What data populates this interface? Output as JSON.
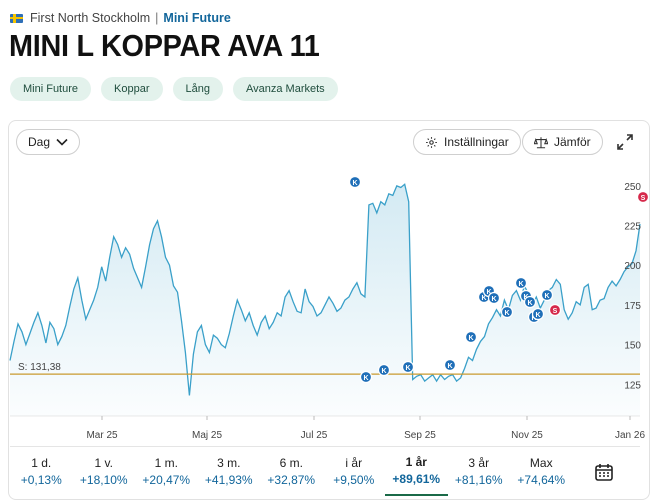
{
  "breadcrumb": {
    "exchange": "First North Stockholm",
    "separator": "|",
    "category": "Mini Future"
  },
  "title": "MINI L KOPPAR AVA 11",
  "tags": [
    "Mini Future",
    "Koppar",
    "Lång",
    "Avanza Markets"
  ],
  "toolbar": {
    "period_label": "Dag",
    "settings_label": "Inställningar",
    "compare_label": "Jämför"
  },
  "chart_data": {
    "type": "line",
    "x_ticks": [
      "Mar 25",
      "Maj 25",
      "Jul 25",
      "Sep 25",
      "Nov 25",
      "Jan 26"
    ],
    "y_ticks": [
      125,
      150,
      175,
      200,
      225,
      250
    ],
    "ylim": [
      105,
      260
    ],
    "reference_line": {
      "label": "S: 131,38",
      "value": 131.38
    },
    "series": [
      {
        "x": [
          0,
          2,
          4,
          6,
          8,
          10,
          12,
          14,
          16,
          18,
          20,
          22,
          24,
          26,
          28,
          30,
          32,
          34,
          36,
          38,
          40,
          42,
          44,
          46,
          48,
          50,
          52,
          54,
          56,
          58,
          60,
          62,
          64,
          66,
          68,
          70,
          72,
          74,
          76,
          78,
          80,
          82,
          84,
          86,
          88,
          90,
          92,
          94,
          96,
          98,
          100,
          102,
          104,
          106,
          108,
          110,
          112,
          114,
          116,
          118,
          120,
          122,
          124,
          126,
          128,
          130,
          132,
          134,
          136,
          138,
          140,
          142,
          144,
          146,
          148,
          150,
          152,
          154,
          156,
          158,
          160,
          162,
          164,
          166,
          168,
          170,
          172,
          174,
          176,
          178,
          180,
          182,
          184,
          186,
          188,
          190,
          192,
          194,
          196,
          198,
          200,
          202,
          204,
          206,
          208,
          210,
          212,
          214,
          216,
          218,
          220,
          222,
          224,
          226,
          228,
          230,
          232,
          234,
          236,
          238,
          240,
          242,
          244,
          246,
          248,
          250,
          252,
          254,
          256,
          258,
          260,
          262,
          264,
          266,
          268,
          270,
          272,
          274,
          276,
          278,
          280,
          282,
          284,
          286,
          288,
          290,
          292,
          294,
          296,
          298,
          300,
          302,
          304,
          306,
          308,
          310,
          312,
          314,
          316
        ],
        "values": [
          140,
          152,
          163,
          158,
          150,
          157,
          164,
          170,
          162,
          151,
          164,
          160,
          150,
          155,
          162,
          174,
          185,
          192,
          178,
          166,
          172,
          178,
          186,
          199,
          190,
          205,
          218,
          213,
          205,
          211,
          207,
          198,
          192,
          186,
          199,
          213,
          223,
          228,
          218,
          205,
          200,
          187,
          183,
          165,
          145,
          118,
          144,
          158,
          162,
          150,
          145,
          156,
          154,
          150,
          148,
          157,
          168,
          178,
          172,
          165,
          170,
          162,
          156,
          164,
          168,
          160,
          164,
          170,
          168,
          180,
          184,
          177,
          171,
          170,
          185,
          177,
          174,
          168,
          170,
          175,
          180,
          176,
          171,
          173,
          178,
          180,
          185,
          189,
          182,
          180,
          238,
          239,
          233,
          240,
          238,
          245,
          244,
          250,
          249,
          251,
          240,
          128,
          130,
          131,
          127,
          129,
          131,
          127,
          131,
          128,
          130,
          131,
          127,
          129,
          135,
          142,
          140,
          147,
          152,
          155,
          163,
          167,
          172,
          168,
          178,
          172,
          181,
          184,
          178,
          187,
          182,
          175,
          180,
          173,
          178,
          184,
          186,
          191,
          188,
          172,
          166,
          170,
          177,
          175,
          186,
          188,
          172,
          173,
          178,
          179,
          186,
          190,
          187,
          191,
          196,
          199,
          201,
          209,
          226
        ]
      }
    ],
    "event_markers": [
      "K",
      "S"
    ]
  },
  "periods": [
    {
      "label": "1 d.",
      "change": "+0,13%"
    },
    {
      "label": "1 v.",
      "change": "+18,10%"
    },
    {
      "label": "1 m.",
      "change": "+20,47%"
    },
    {
      "label": "3 m.",
      "change": "+41,93%"
    },
    {
      "label": "6 m.",
      "change": "+32,87%"
    },
    {
      "label": "i år",
      "change": "+9,50%"
    },
    {
      "label": "1 år",
      "change": "+89,61%"
    },
    {
      "label": "3 år",
      "change": "+81,16%"
    },
    {
      "label": "Max",
      "change": "+74,64%"
    }
  ],
  "active_period_index": 6,
  "colors": {
    "line": "#3aa0c9",
    "reference": "#c99a2e",
    "marker_k": "#1f6fb8",
    "marker_s": "#d6294b",
    "active_tab": "#1a6a48"
  }
}
